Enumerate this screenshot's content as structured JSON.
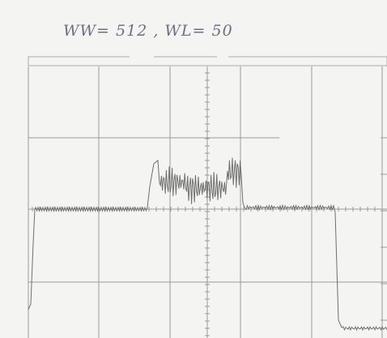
{
  "annotation": {
    "text": "WW= 512 , WL= 50"
  }
}
